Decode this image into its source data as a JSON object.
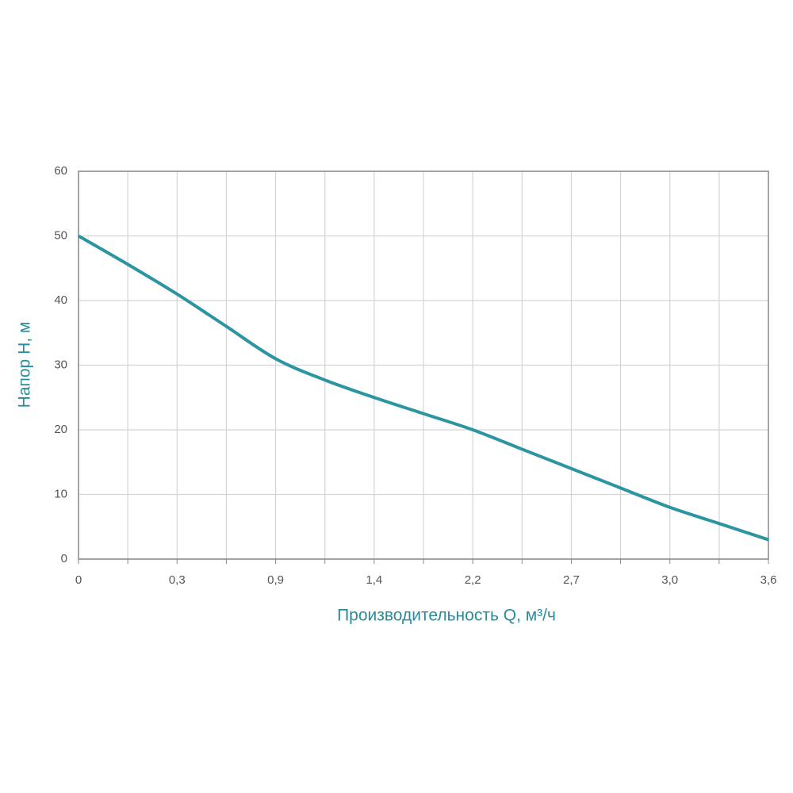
{
  "chart_data": {
    "type": "line",
    "categories": [
      "0",
      null,
      "0,3",
      null,
      "0,9",
      null,
      "1,4",
      null,
      "2,2",
      null,
      "2,7",
      null,
      "3,0",
      null,
      "3,6"
    ],
    "series": [
      {
        "color": "#2b95a1",
        "values": [
          50,
          45.6,
          41,
          36,
          31,
          27.7,
          25,
          22.5,
          20,
          17,
          14,
          11,
          8,
          5.5,
          3
        ]
      }
    ],
    "x_label": "Производительность Q, м³/ч",
    "y_label": "Напор H, м",
    "ylim": [
      0,
      60
    ],
    "yticks": [
      0,
      10,
      20,
      30,
      40,
      50,
      60
    ],
    "grid": true
  }
}
